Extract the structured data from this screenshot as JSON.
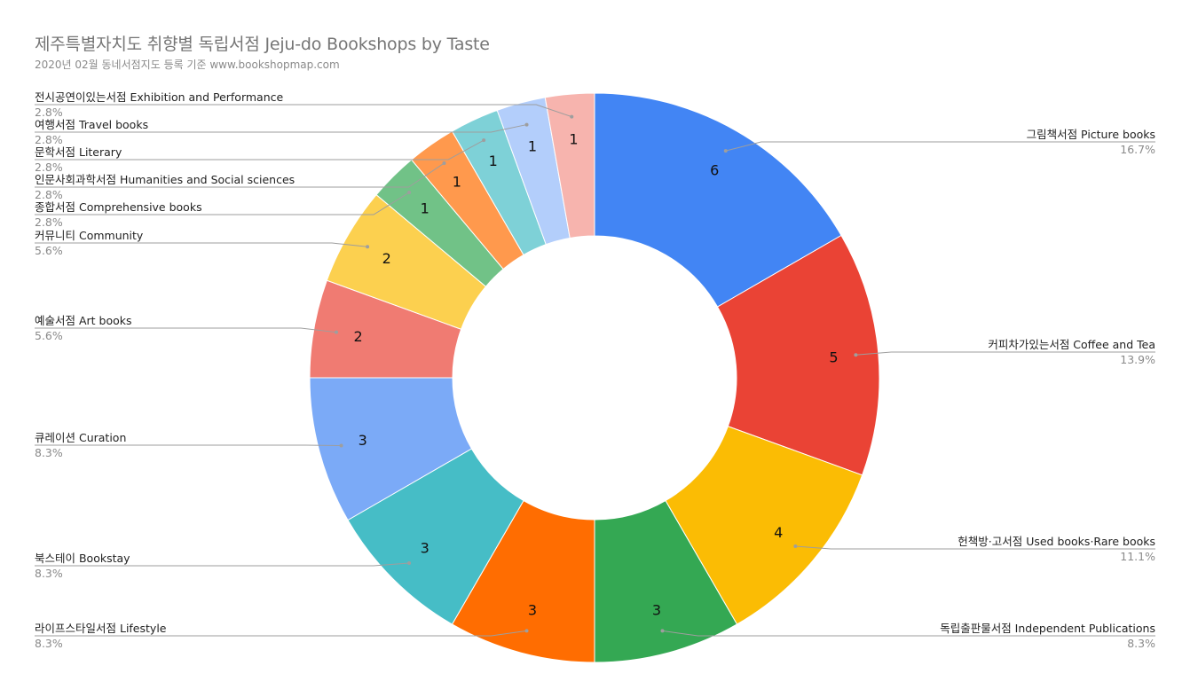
{
  "title": "제주특별자치도 취향별 독립서점 Jeju-do Bookshops by Taste",
  "subtitle": "2020년 02월 동네서점지도 등록 기준 www.bookshopmap.com",
  "chart_data": {
    "type": "pie",
    "donut": true,
    "title": "제주특별자치도 취향별 독립서점 Jeju-do Bookshops by Taste",
    "subtitle": "2020년 02월 동네서점지도 등록 기준 www.bookshopmap.com",
    "slices": [
      {
        "label": "그림책서점 Picture books",
        "value": 6,
        "percent": "16.7%",
        "color": "#4285f4",
        "side": "right"
      },
      {
        "label": "커피차가있는서점 Coffee and Tea",
        "value": 5,
        "percent": "13.9%",
        "color": "#ea4335",
        "side": "right"
      },
      {
        "label": "헌책방·고서점 Used books·Rare books",
        "value": 4,
        "percent": "11.1%",
        "color": "#fbbc04",
        "side": "right"
      },
      {
        "label": "독립출판물서점 Independent Publications",
        "value": 3,
        "percent": "8.3%",
        "color": "#34a853",
        "side": "right"
      },
      {
        "label": "라이프스타일서점 Lifestyle",
        "value": 3,
        "percent": "8.3%",
        "color": "#ff6d01",
        "side": "left"
      },
      {
        "label": "북스테이 Bookstay",
        "value": 3,
        "percent": "8.3%",
        "color": "#46bdc6",
        "side": "left"
      },
      {
        "label": "큐레이션 Curation",
        "value": 3,
        "percent": "8.3%",
        "color": "#7baaf7",
        "side": "left"
      },
      {
        "label": "예술서점 Art books",
        "value": 2,
        "percent": "5.6%",
        "color": "#f07b72",
        "side": "left"
      },
      {
        "label": "커뮤니티 Community",
        "value": 2,
        "percent": "5.6%",
        "color": "#fcd04f",
        "side": "left"
      },
      {
        "label": "종합서점 Comprehensive books",
        "value": 1,
        "percent": "2.8%",
        "color": "#71c287",
        "side": "left"
      },
      {
        "label": "인문사회과학서점 Humanities and Social sciences",
        "value": 1,
        "percent": "2.8%",
        "color": "#ff994d",
        "side": "left"
      },
      {
        "label": "문학서점 Literary",
        "value": 1,
        "percent": "2.8%",
        "color": "#7ed1d7",
        "side": "left"
      },
      {
        "label": "여행서점 Travel books",
        "value": 1,
        "percent": "2.8%",
        "color": "#b3cefb",
        "side": "left"
      },
      {
        "label": "전시공연이있는서점 Exhibition and Performance",
        "value": 1,
        "percent": "2.8%",
        "color": "#f7b4ae",
        "side": "left"
      }
    ],
    "legend": "none",
    "labels": "outside with leader lines"
  }
}
